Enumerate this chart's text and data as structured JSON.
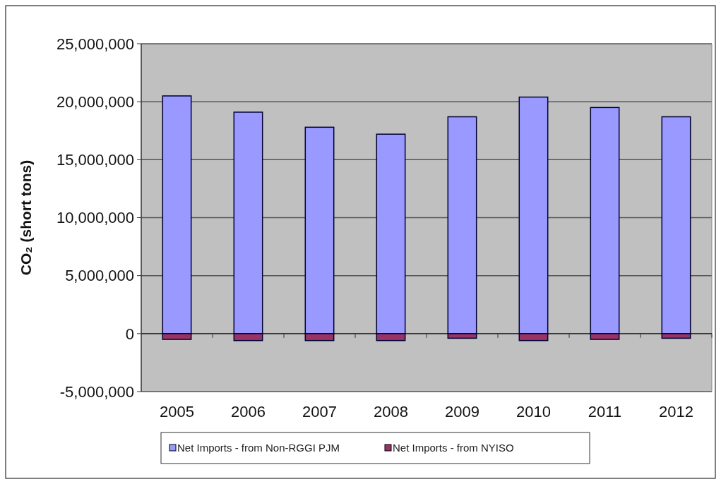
{
  "chart_data": {
    "type": "bar",
    "ylabel": "CO₂ (short tons)",
    "stacked": true,
    "categories": [
      "2005",
      "2006",
      "2007",
      "2008",
      "2009",
      "2010",
      "2011",
      "2012"
    ],
    "series": [
      {
        "name": "Net Imports - from Non-RGGI PJM",
        "color": "#9999ff",
        "values": [
          20500000,
          19100000,
          17800000,
          17200000,
          18700000,
          20400000,
          19500000,
          18700000
        ]
      },
      {
        "name": "Net Imports - from NYISO",
        "color": "#993366",
        "values": [
          -500000,
          -600000,
          -600000,
          -600000,
          -400000,
          -600000,
          -500000,
          -400000
        ]
      }
    ],
    "ylim": [
      -5000000,
      25000000
    ],
    "yticks": [
      {
        "value": -5000000,
        "label": "-5,000,000"
      },
      0,
      {
        "value": 5000000,
        "label": "5,000,000"
      },
      {
        "value": 10000000,
        "label": "10,000,000"
      },
      {
        "value": 15000000,
        "label": "15,000,000"
      },
      {
        "value": 20000000,
        "label": "20,000,000"
      },
      {
        "value": 25000000,
        "label": "25,000,000"
      }
    ],
    "grid": "y",
    "legend": "bottom"
  }
}
